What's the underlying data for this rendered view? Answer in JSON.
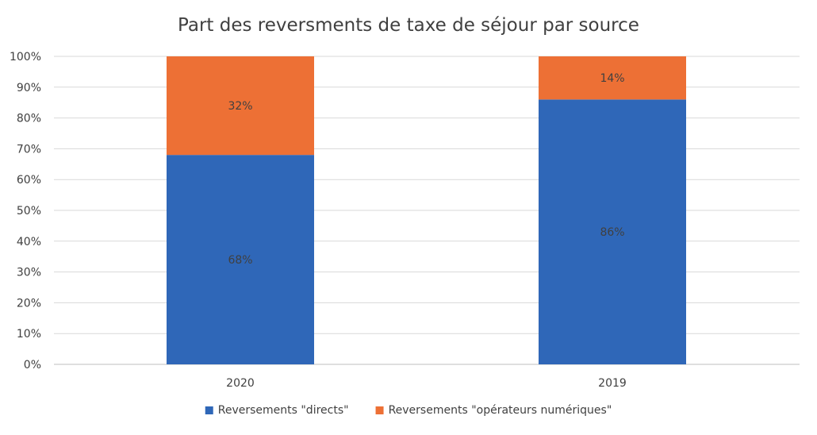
{
  "chart_data": {
    "type": "bar",
    "stacked": true,
    "normalized": true,
    "title": "Part des reversments de taxe de séjour par source",
    "xlabel": "",
    "ylabel": "",
    "categories": [
      "2020",
      "2019"
    ],
    "series": [
      {
        "name": "Reversements \"directs\"",
        "values": [
          68,
          86
        ],
        "labels": [
          "68%",
          "86%"
        ],
        "color": "#2F67B8"
      },
      {
        "name": "Reversements \"opérateurs numériques\"",
        "values": [
          32,
          14
        ],
        "labels": [
          "32%",
          "14%"
        ],
        "color": "#ED7035"
      }
    ],
    "ylim": [
      0,
      100
    ],
    "yticks": [
      0,
      10,
      20,
      30,
      40,
      50,
      60,
      70,
      80,
      90,
      100
    ],
    "ytick_labels": [
      "0%",
      "10%",
      "20%",
      "30%",
      "40%",
      "50%",
      "60%",
      "70%",
      "80%",
      "90%",
      "100%"
    ],
    "grid": true,
    "legend_position": "bottom"
  }
}
